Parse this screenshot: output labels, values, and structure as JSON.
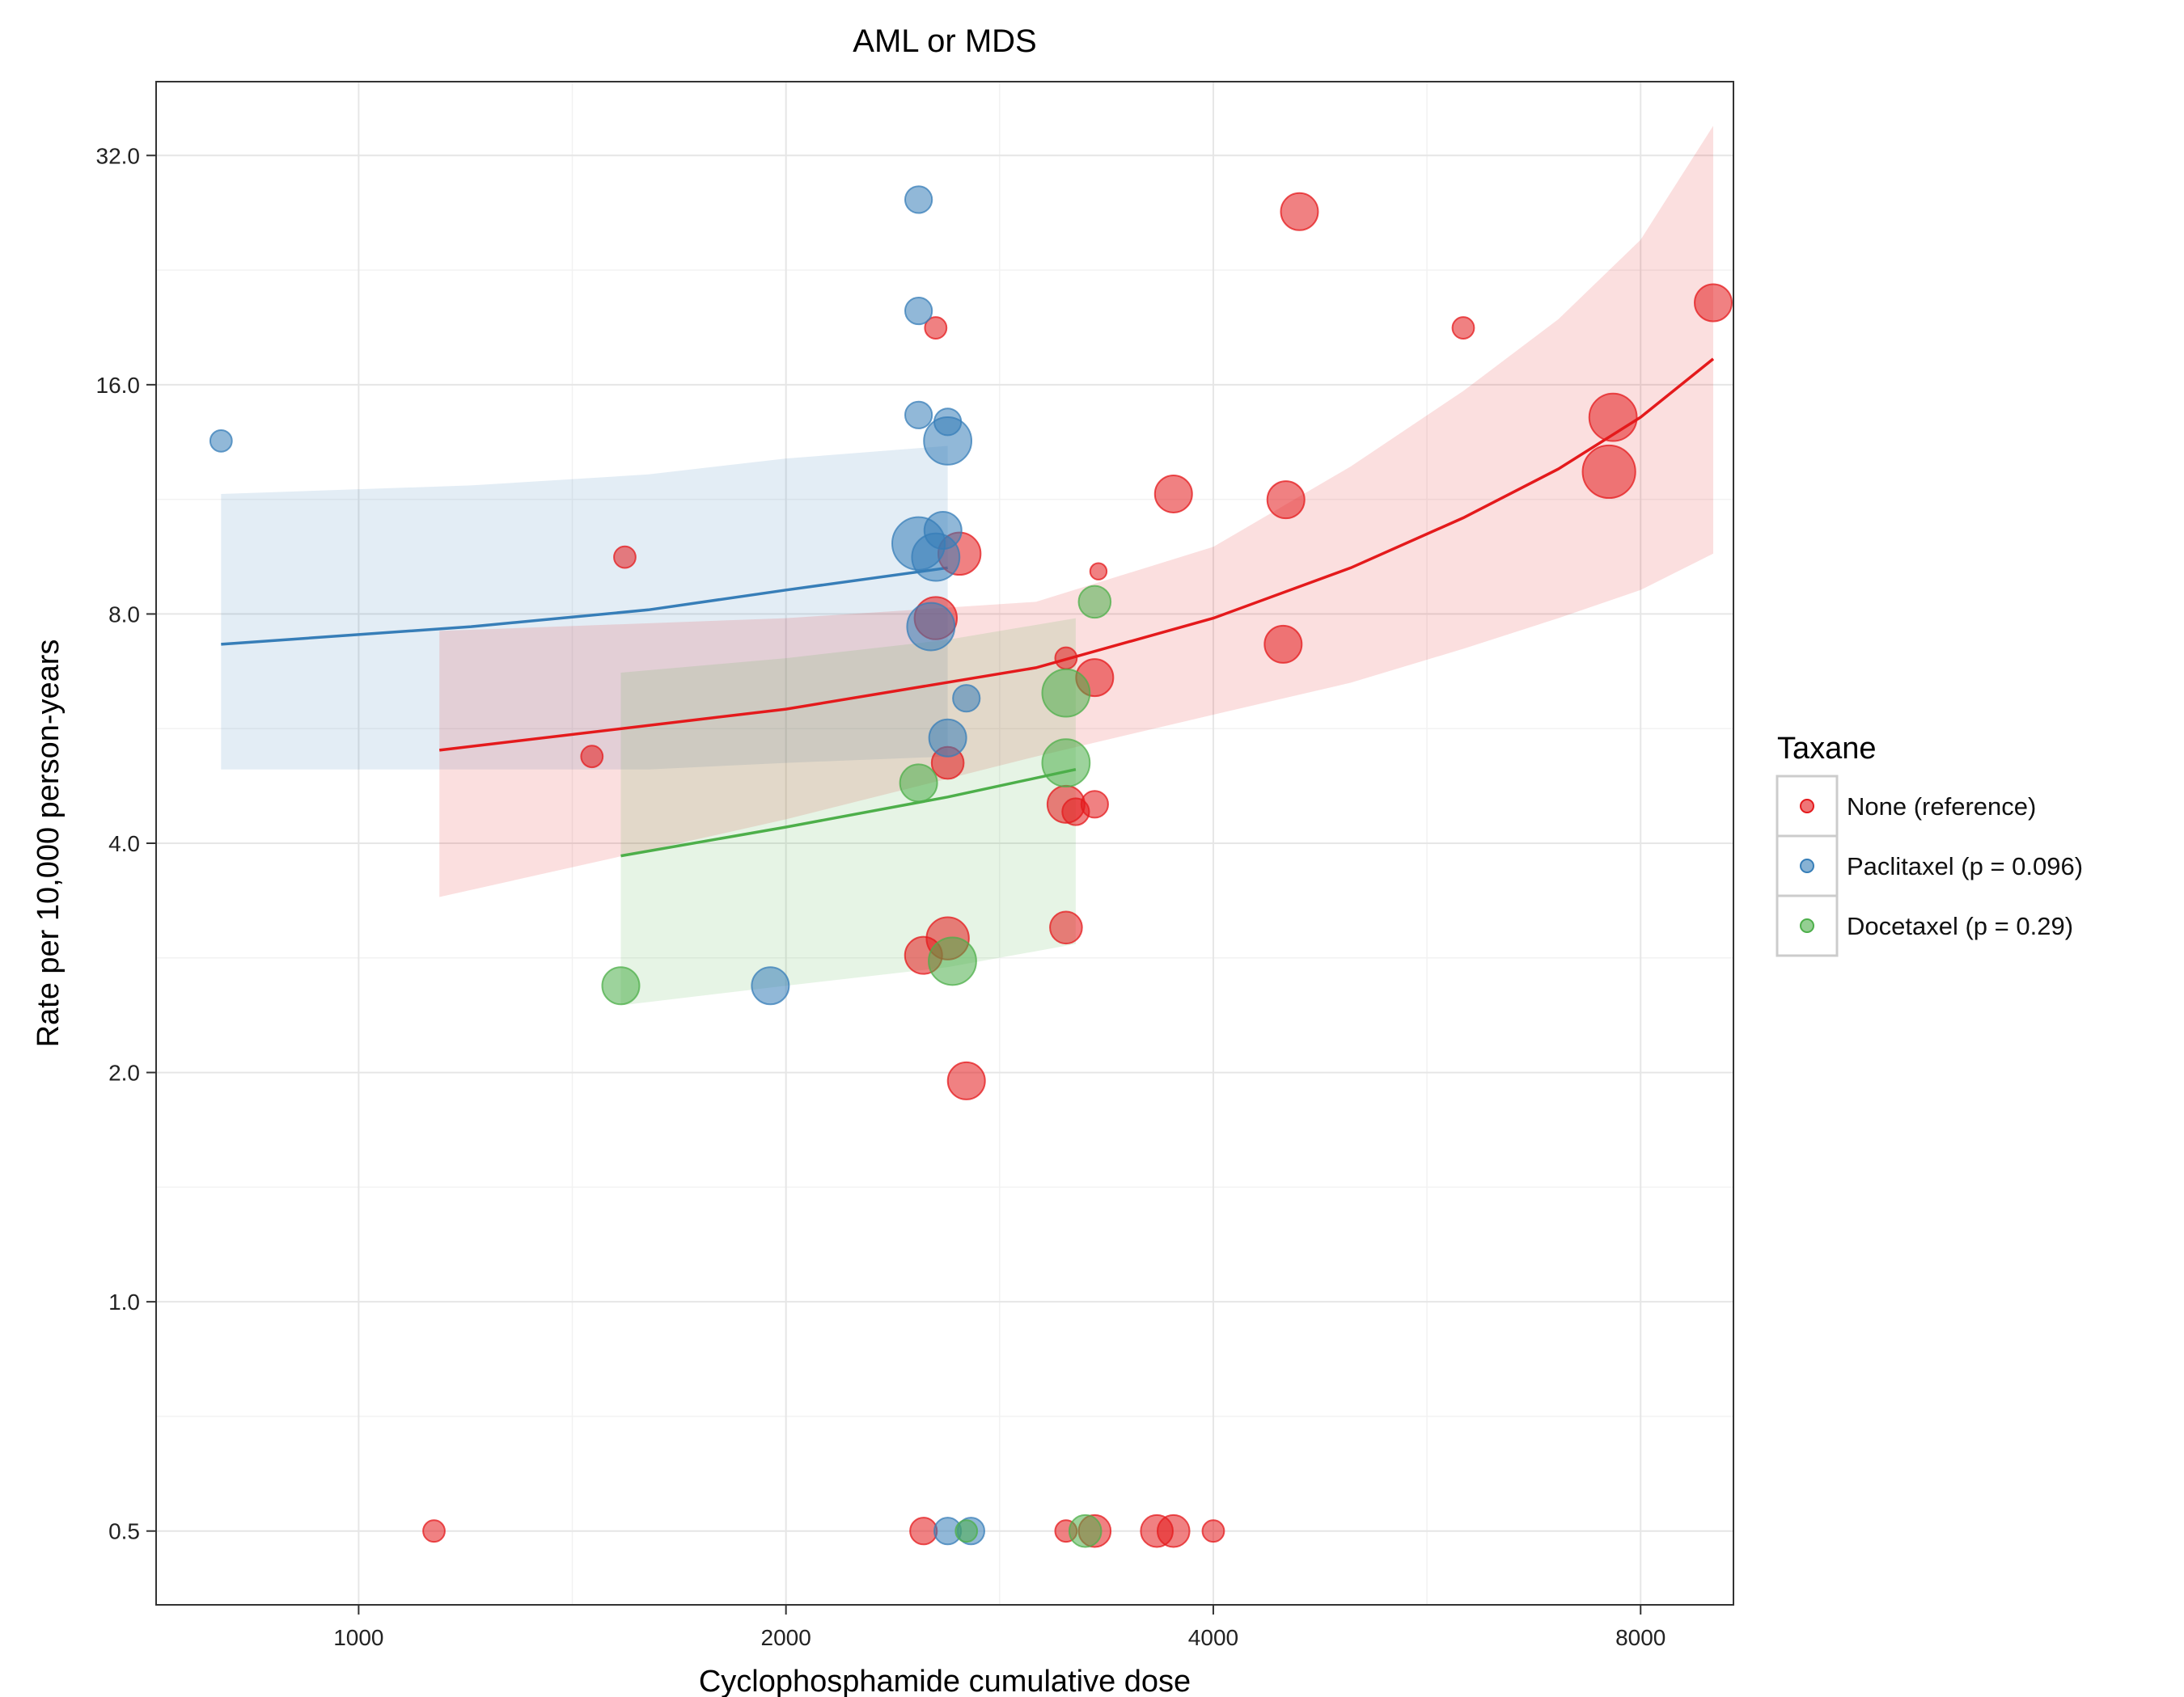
{
  "chart_data": {
    "type": "scatter",
    "title": "AML or MDS",
    "xlabel": "Cyclophosphamide cumulative dose",
    "ylabel": "Rate per 10,000 person-years",
    "x_scale": "log2",
    "y_scale": "log2",
    "xlim": [
      720,
      9300
    ],
    "ylim": [
      0.4,
      40
    ],
    "x_ticks": [
      1000,
      2000,
      4000,
      8000
    ],
    "x_tick_labels": [
      "1000",
      "2000",
      "4000",
      "8000"
    ],
    "y_ticks": [
      0.5,
      1.0,
      2.0,
      4.0,
      8.0,
      16.0,
      32.0
    ],
    "y_tick_labels": [
      "0.5",
      "1.0",
      "2.0",
      "4.0",
      "8.0",
      "16.0",
      "32.0"
    ],
    "grid": true,
    "legend_title": "Taxane",
    "legend_position": "right",
    "series": [
      {
        "name": "None (reference)",
        "color": "#e41a1c",
        "points": [
          {
            "x": 2550,
            "y": 19,
            "size": 2
          },
          {
            "x": 1540,
            "y": 9.5,
            "size": 2
          },
          {
            "x": 1460,
            "y": 5.2,
            "size": 2
          },
          {
            "x": 2650,
            "y": 9.6,
            "size": 6
          },
          {
            "x": 2550,
            "y": 7.9,
            "size": 6
          },
          {
            "x": 2600,
            "y": 5.1,
            "size": 4
          },
          {
            "x": 3150,
            "y": 7.0,
            "size": 2
          },
          {
            "x": 3300,
            "y": 6.6,
            "size": 5
          },
          {
            "x": 3320,
            "y": 9.1,
            "size": 1
          },
          {
            "x": 3300,
            "y": 4.5,
            "size": 3
          },
          {
            "x": 3200,
            "y": 4.4,
            "size": 3
          },
          {
            "x": 3150,
            "y": 4.5,
            "size": 5
          },
          {
            "x": 3150,
            "y": 3.1,
            "size": 4
          },
          {
            "x": 2600,
            "y": 3.0,
            "size": 6
          },
          {
            "x": 2500,
            "y": 2.85,
            "size": 5
          },
          {
            "x": 2680,
            "y": 1.95,
            "size": 5
          },
          {
            "x": 3750,
            "y": 11.5,
            "size": 5
          },
          {
            "x": 4500,
            "y": 11.3,
            "size": 5
          },
          {
            "x": 4600,
            "y": 27,
            "size": 5
          },
          {
            "x": 4480,
            "y": 7.3,
            "size": 5
          },
          {
            "x": 6000,
            "y": 19,
            "size": 2
          },
          {
            "x": 7600,
            "y": 12.3,
            "size": 8
          },
          {
            "x": 7650,
            "y": 14.5,
            "size": 7
          },
          {
            "x": 9000,
            "y": 20.5,
            "size": 5
          },
          {
            "x": 1130,
            "y": 0.5,
            "size": 2
          },
          {
            "x": 2500,
            "y": 0.5,
            "size": 3
          },
          {
            "x": 3150,
            "y": 0.5,
            "size": 2
          },
          {
            "x": 3300,
            "y": 0.5,
            "size": 4
          },
          {
            "x": 3650,
            "y": 0.5,
            "size": 4
          },
          {
            "x": 3750,
            "y": 0.5,
            "size": 4
          },
          {
            "x": 4000,
            "y": 0.5,
            "size": 2
          }
        ]
      },
      {
        "name": "Paclitaxel (p = 0.096)",
        "color": "#377eb8",
        "points": [
          {
            "x": 800,
            "y": 13.5,
            "size": 2
          },
          {
            "x": 2480,
            "y": 28,
            "size": 3
          },
          {
            "x": 2480,
            "y": 20,
            "size": 3
          },
          {
            "x": 2480,
            "y": 14.6,
            "size": 3
          },
          {
            "x": 2600,
            "y": 14.3,
            "size": 3
          },
          {
            "x": 2600,
            "y": 13.5,
            "size": 7
          },
          {
            "x": 2580,
            "y": 10.3,
            "size": 5
          },
          {
            "x": 2480,
            "y": 9.9,
            "size": 8
          },
          {
            "x": 2550,
            "y": 9.5,
            "size": 7
          },
          {
            "x": 2530,
            "y": 7.7,
            "size": 7
          },
          {
            "x": 2680,
            "y": 6.2,
            "size": 3
          },
          {
            "x": 2600,
            "y": 5.5,
            "size": 5
          },
          {
            "x": 1950,
            "y": 2.6,
            "size": 5
          },
          {
            "x": 2600,
            "y": 0.5,
            "size": 3
          },
          {
            "x": 2700,
            "y": 0.5,
            "size": 3
          }
        ]
      },
      {
        "name": "Docetaxel (p = 0.29)",
        "color": "#4daf4a",
        "points": [
          {
            "x": 3300,
            "y": 8.3,
            "size": 4
          },
          {
            "x": 3150,
            "y": 6.3,
            "size": 7
          },
          {
            "x": 3150,
            "y": 5.1,
            "size": 7
          },
          {
            "x": 2480,
            "y": 4.8,
            "size": 5
          },
          {
            "x": 2620,
            "y": 2.8,
            "size": 7
          },
          {
            "x": 1530,
            "y": 2.6,
            "size": 5
          },
          {
            "x": 3250,
            "y": 0.5,
            "size": 4
          },
          {
            "x": 2680,
            "y": 0.5,
            "size": 2
          }
        ]
      }
    ],
    "fits": [
      {
        "series": "Paclitaxel (p = 0.096)",
        "color": "#377eb8",
        "x": [
          800,
          1200,
          1600,
          2000,
          2600
        ],
        "y": [
          7.3,
          7.7,
          8.1,
          8.6,
          9.2
        ],
        "lower": [
          5.0,
          5.0,
          5.0,
          5.1,
          5.2
        ],
        "upper": [
          11.5,
          11.8,
          12.2,
          12.8,
          13.3
        ]
      },
      {
        "series": "None (reference)",
        "color": "#e41a1c",
        "x": [
          1140,
          2000,
          3000,
          4000,
          5000,
          6000,
          7000,
          8000,
          9000
        ],
        "y": [
          5.3,
          6.0,
          6.8,
          7.9,
          9.2,
          10.7,
          12.4,
          14.5,
          17.3
        ],
        "lower": [
          3.4,
          4.3,
          5.2,
          5.9,
          6.5,
          7.2,
          7.9,
          8.6,
          9.6
        ],
        "upper": [
          7.6,
          7.9,
          8.3,
          9.8,
          12.5,
          15.7,
          19.5,
          24.8,
          35.0
        ]
      },
      {
        "series": "Docetaxel (p = 0.29)",
        "color": "#4daf4a",
        "x": [
          1530,
          2000,
          2600,
          3200
        ],
        "y": [
          3.85,
          4.2,
          4.6,
          5.0
        ],
        "lower": [
          2.45,
          2.6,
          2.75,
          2.95
        ],
        "upper": [
          6.7,
          7.0,
          7.4,
          7.9
        ]
      }
    ]
  }
}
